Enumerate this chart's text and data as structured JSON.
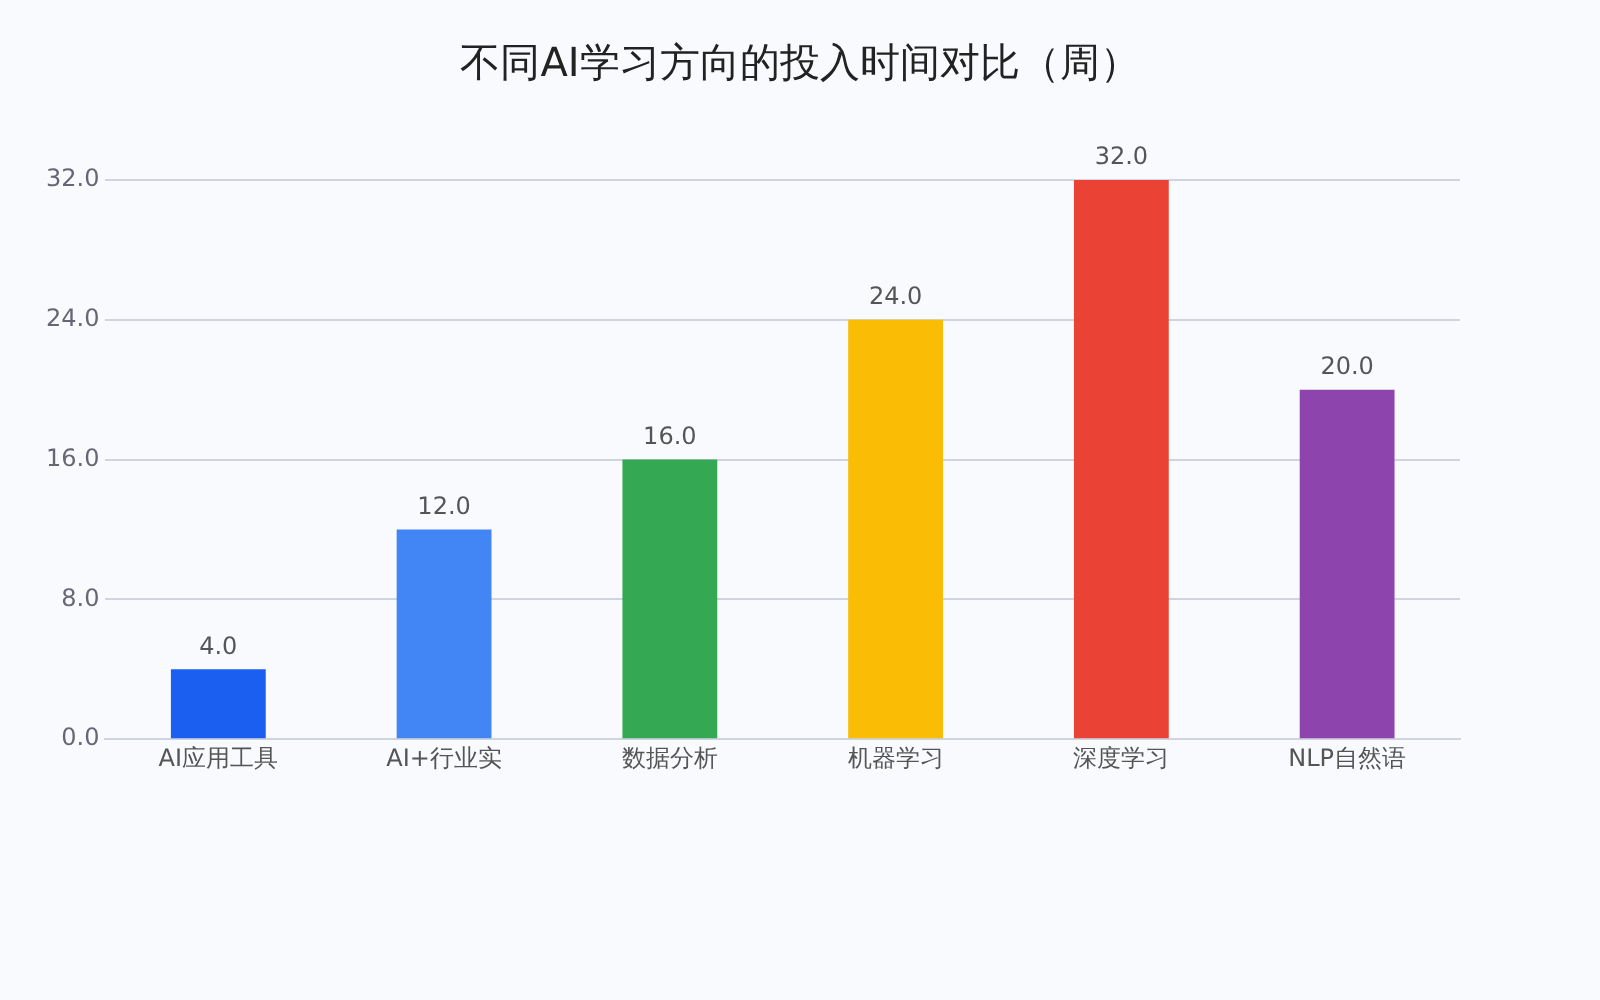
{
  "chart_data": {
    "type": "bar",
    "title": "不同AI学习方向的投入时间对比（周）",
    "categories": [
      "AI应用工具",
      "AI+行业实",
      "数据分析",
      "机器学习",
      "深度学习",
      "NLP自然语"
    ],
    "values": [
      4,
      12,
      16,
      24,
      32,
      20
    ],
    "colors": [
      "#1a5ff0",
      "#4285f4",
      "#34a853",
      "#fbbc05",
      "#ea4335",
      "#8e44ad"
    ],
    "value_labels": [
      "4.0",
      "12.0",
      "16.0",
      "24.0",
      "32.0",
      "20.0"
    ],
    "ylim": [
      0,
      32
    ],
    "yticks": [
      {
        "value": 0,
        "label": "0.0"
      },
      {
        "value": 8,
        "label": "8.0"
      },
      {
        "value": 16,
        "label": "16.0"
      },
      {
        "value": 24,
        "label": "24.0"
      },
      {
        "value": 32,
        "label": "32.0"
      }
    ],
    "grid": "y"
  }
}
